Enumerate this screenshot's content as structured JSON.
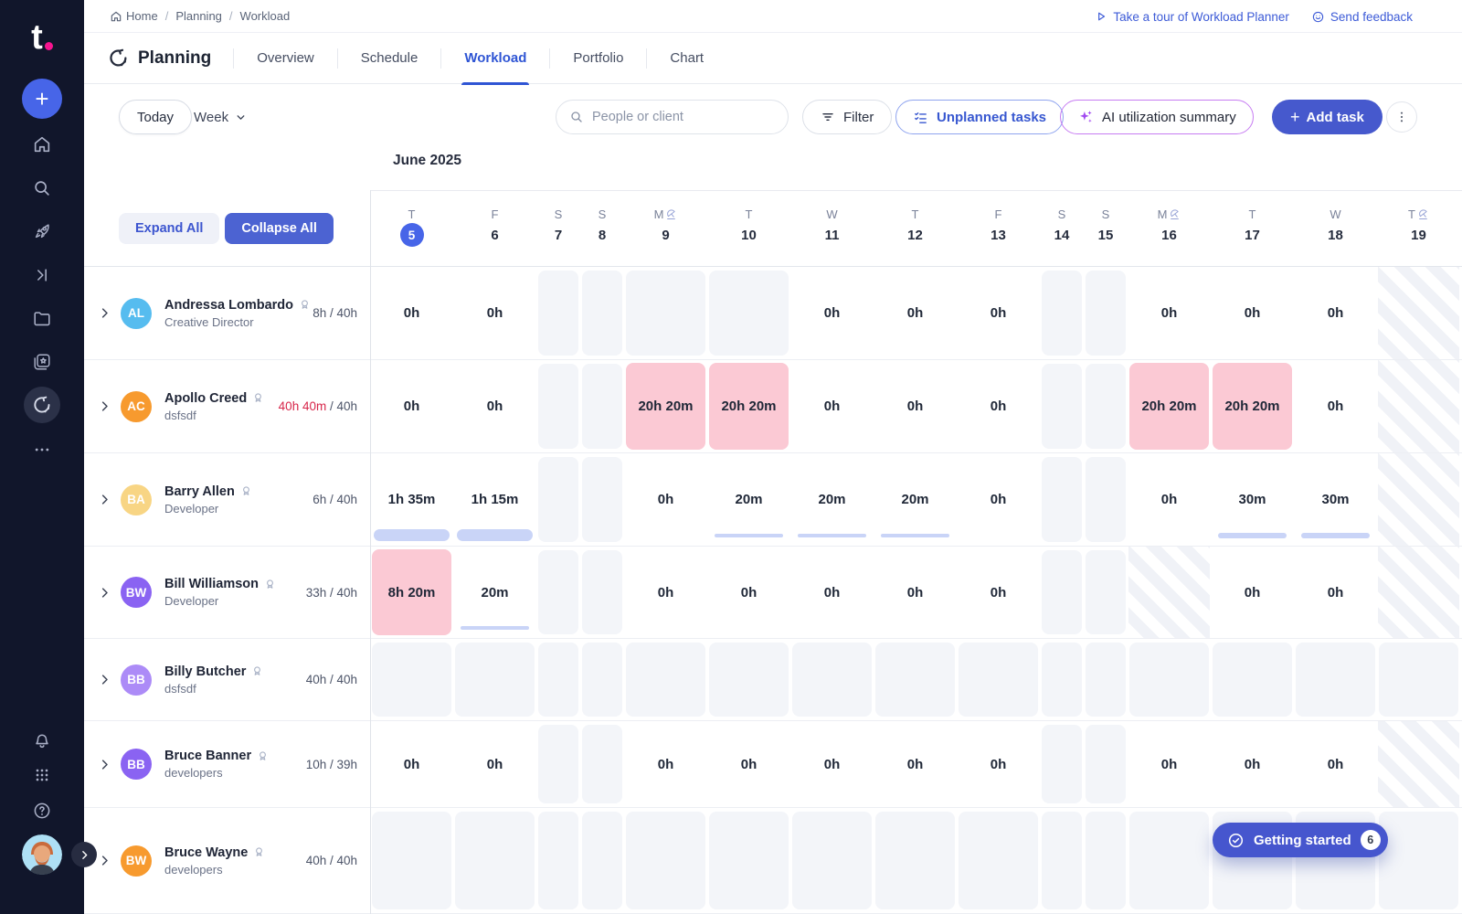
{
  "brand": {
    "logo_text": "t",
    "accent_pink": "#F7148F",
    "primary_blue": "#4461D7"
  },
  "sidebar": {
    "icons": [
      "plus",
      "home",
      "search",
      "rocket",
      "skip-to",
      "projects",
      "media",
      "planning",
      "more",
      "notifications",
      "apps",
      "help",
      "avatar",
      "expand-panel"
    ]
  },
  "breadcrumb": {
    "items": [
      "Home",
      "Planning",
      "Workload"
    ]
  },
  "top_links": {
    "tour": "Take a tour of Workload Planner",
    "feedback": "Send feedback"
  },
  "nav": {
    "title": "Planning",
    "tabs": [
      {
        "label": "Overview",
        "active": false
      },
      {
        "label": "Schedule",
        "active": false
      },
      {
        "label": "Workload",
        "active": true
      },
      {
        "label": "Portfolio",
        "active": false
      },
      {
        "label": "Chart",
        "active": false
      }
    ]
  },
  "toolbar": {
    "today": "Today",
    "view": "Week",
    "search_placeholder": "People or client",
    "filter": "Filter",
    "unplanned_tasks": "Unplanned tasks",
    "ai_summary": "AI utilization summary",
    "add_task": "Add task"
  },
  "timeline": {
    "month_label": "June 2025",
    "expand_all": "Expand All",
    "collapse_all": "Collapse All",
    "days": [
      {
        "letter": "T",
        "num": "5",
        "today": true
      },
      {
        "letter": "F",
        "num": "6"
      },
      {
        "letter": "S",
        "num": "7",
        "weekend": true
      },
      {
        "letter": "S",
        "num": "8",
        "weekend": true
      },
      {
        "letter": "M",
        "num": "9",
        "holiday": true
      },
      {
        "letter": "T",
        "num": "10"
      },
      {
        "letter": "W",
        "num": "11"
      },
      {
        "letter": "T",
        "num": "12"
      },
      {
        "letter": "F",
        "num": "13"
      },
      {
        "letter": "S",
        "num": "14",
        "weekend": true
      },
      {
        "letter": "S",
        "num": "15",
        "weekend": true
      },
      {
        "letter": "M",
        "num": "16",
        "holiday": true
      },
      {
        "letter": "T",
        "num": "17"
      },
      {
        "letter": "W",
        "num": "18"
      },
      {
        "letter": "T",
        "num": "19",
        "holiday": true
      }
    ]
  },
  "rows": [
    {
      "name": "Andressa Lombardo",
      "role": "Creative Director",
      "initials": "AL",
      "avatar_color": "#56BCEF",
      "hours": {
        "used": "8h",
        "total": "40h",
        "over": false
      },
      "cells": [
        {
          "type": "value",
          "text": "0h"
        },
        {
          "type": "value",
          "text": "0h"
        },
        {
          "type": "off"
        },
        {
          "type": "off"
        },
        {
          "type": "off"
        },
        {
          "type": "off"
        },
        {
          "type": "value",
          "text": "0h"
        },
        {
          "type": "value",
          "text": "0h"
        },
        {
          "type": "value",
          "text": "0h"
        },
        {
          "type": "off"
        },
        {
          "type": "off"
        },
        {
          "type": "value",
          "text": "0h"
        },
        {
          "type": "value",
          "text": "0h"
        },
        {
          "type": "value",
          "text": "0h"
        },
        {
          "type": "hatch"
        }
      ]
    },
    {
      "name": "Apollo Creed",
      "role": "dsfsdf",
      "initials": "AC",
      "avatar_color": "#F79A2E",
      "hours": {
        "used": "40h 40m",
        "total": "40h",
        "over": true
      },
      "cells": [
        {
          "type": "value",
          "text": "0h"
        },
        {
          "type": "value",
          "text": "0h"
        },
        {
          "type": "off"
        },
        {
          "type": "off"
        },
        {
          "type": "value",
          "text": "20h 20m",
          "overload": true
        },
        {
          "type": "value",
          "text": "20h 20m",
          "overload": true
        },
        {
          "type": "value",
          "text": "0h"
        },
        {
          "type": "value",
          "text": "0h"
        },
        {
          "type": "value",
          "text": "0h"
        },
        {
          "type": "off"
        },
        {
          "type": "off"
        },
        {
          "type": "value",
          "text": "20h 20m",
          "overload": true
        },
        {
          "type": "value",
          "text": "20h 20m",
          "overload": true
        },
        {
          "type": "value",
          "text": "0h"
        },
        {
          "type": "hatch"
        }
      ]
    },
    {
      "name": "Barry Allen",
      "role": "Developer",
      "initials": "BA",
      "avatar_color": "#F8D584",
      "hours": {
        "used": "6h",
        "total": "40h",
        "over": false
      },
      "cells": [
        {
          "type": "value",
          "text": "1h 35m",
          "bar": "thick"
        },
        {
          "type": "value",
          "text": "1h 15m",
          "bar": "thick"
        },
        {
          "type": "off"
        },
        {
          "type": "off"
        },
        {
          "type": "value",
          "text": "0h"
        },
        {
          "type": "value",
          "text": "20m",
          "bar": "thin"
        },
        {
          "type": "value",
          "text": "20m",
          "bar": "thin"
        },
        {
          "type": "value",
          "text": "20m",
          "bar": "thin"
        },
        {
          "type": "value",
          "text": "0h"
        },
        {
          "type": "off"
        },
        {
          "type": "off"
        },
        {
          "type": "value",
          "text": "0h"
        },
        {
          "type": "value",
          "text": "30m",
          "bar": "med"
        },
        {
          "type": "value",
          "text": "30m",
          "bar": "med"
        },
        {
          "type": "hatch"
        }
      ]
    },
    {
      "name": "Bill Williamson",
      "role": "Developer",
      "initials": "BW",
      "avatar_color": "#8A63F2",
      "hours": {
        "used": "33h",
        "total": "40h",
        "over": false
      },
      "cells": [
        {
          "type": "value",
          "text": "8h 20m",
          "overload": true
        },
        {
          "type": "value",
          "text": "20m",
          "bar": "thin"
        },
        {
          "type": "off"
        },
        {
          "type": "off"
        },
        {
          "type": "value",
          "text": "0h"
        },
        {
          "type": "value",
          "text": "0h"
        },
        {
          "type": "value",
          "text": "0h"
        },
        {
          "type": "value",
          "text": "0h"
        },
        {
          "type": "value",
          "text": "0h"
        },
        {
          "type": "off"
        },
        {
          "type": "off"
        },
        {
          "type": "hatch"
        },
        {
          "type": "value",
          "text": "0h"
        },
        {
          "type": "value",
          "text": "0h"
        },
        {
          "type": "hatch"
        }
      ]
    },
    {
      "name": "Billy Butcher",
      "role": "dsfsdf",
      "initials": "BB",
      "avatar_color": "#AC8BF7",
      "hours": {
        "used": "40h",
        "total": "40h",
        "over": false
      },
      "cells": [
        {
          "type": "off"
        },
        {
          "type": "off"
        },
        {
          "type": "off"
        },
        {
          "type": "off"
        },
        {
          "type": "off"
        },
        {
          "type": "off"
        },
        {
          "type": "off"
        },
        {
          "type": "off"
        },
        {
          "type": "off"
        },
        {
          "type": "off"
        },
        {
          "type": "off"
        },
        {
          "type": "off"
        },
        {
          "type": "off"
        },
        {
          "type": "off"
        },
        {
          "type": "off"
        }
      ]
    },
    {
      "name": "Bruce Banner",
      "role": "developers",
      "initials": "BB",
      "avatar_color": "#8A63F2",
      "hours": {
        "used": "10h",
        "total": "39h",
        "over": false
      },
      "cells": [
        {
          "type": "value",
          "text": "0h"
        },
        {
          "type": "value",
          "text": "0h"
        },
        {
          "type": "off"
        },
        {
          "type": "off"
        },
        {
          "type": "value",
          "text": "0h"
        },
        {
          "type": "value",
          "text": "0h"
        },
        {
          "type": "value",
          "text": "0h"
        },
        {
          "type": "value",
          "text": "0h"
        },
        {
          "type": "value",
          "text": "0h"
        },
        {
          "type": "off"
        },
        {
          "type": "off"
        },
        {
          "type": "value",
          "text": "0h"
        },
        {
          "type": "value",
          "text": "0h"
        },
        {
          "type": "value",
          "text": "0h"
        },
        {
          "type": "hatch"
        }
      ]
    },
    {
      "name": "Bruce Wayne",
      "role": "developers",
      "initials": "BW",
      "avatar_color": "#F79A2E",
      "hours": {
        "used": "40h",
        "total": "40h",
        "over": false
      },
      "cells": [
        {
          "type": "off"
        },
        {
          "type": "off"
        },
        {
          "type": "off"
        },
        {
          "type": "off"
        },
        {
          "type": "off"
        },
        {
          "type": "off"
        },
        {
          "type": "off"
        },
        {
          "type": "off"
        },
        {
          "type": "off"
        },
        {
          "type": "off"
        },
        {
          "type": "off"
        },
        {
          "type": "off"
        },
        {
          "type": "off"
        },
        {
          "type": "off"
        },
        {
          "type": "off"
        }
      ]
    }
  ],
  "getting_started": {
    "label": "Getting started",
    "count": "6"
  },
  "colors": {
    "overload_cell": "#FBC9D4",
    "overload_text": "#D7264A",
    "timeoff_cell": "#F3F5F9",
    "allocation_bar": "#C9D4F7",
    "today_circle": "#4765E8"
  }
}
